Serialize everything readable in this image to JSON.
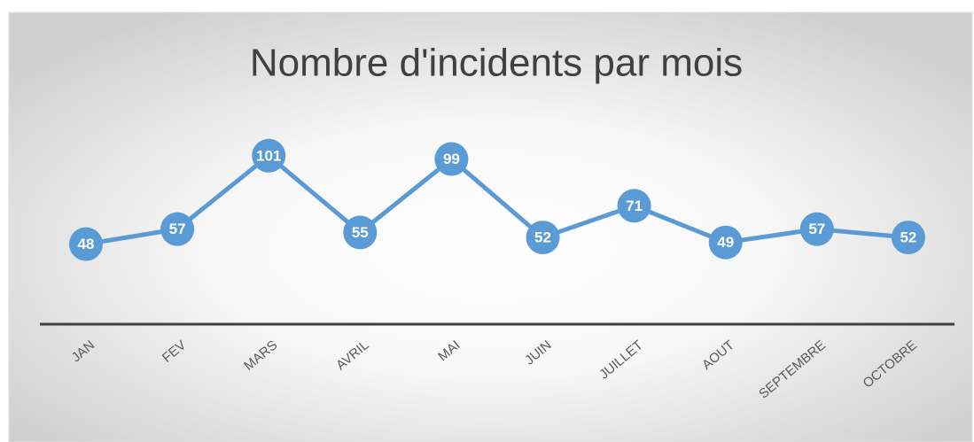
{
  "chart_data": {
    "type": "line",
    "title": "Nombre d'incidents par mois",
    "categories": [
      "JAN",
      "FEV",
      "MARS",
      "AVRIL",
      "MAI",
      "JUIN",
      "JUILLET",
      "AOUT",
      "SEPTEMBRE",
      "OCTOBRE"
    ],
    "values": [
      48,
      57,
      101,
      55,
      99,
      52,
      71,
      49,
      57,
      52
    ],
    "color": "#5b9bd5",
    "ylim": [
      0,
      120
    ]
  }
}
